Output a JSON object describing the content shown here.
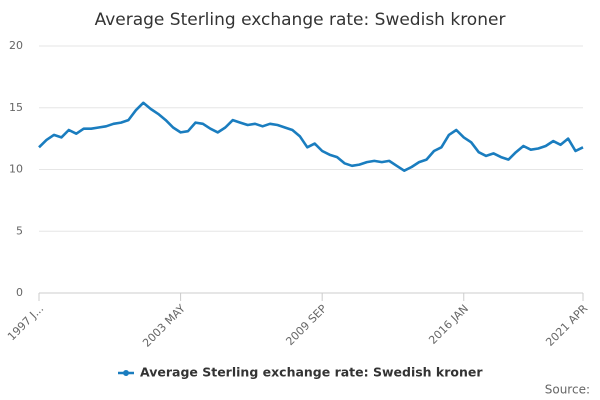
{
  "chart_data": {
    "type": "line",
    "title": "Average Sterling exchange rate: Swedish kroner",
    "categories": [
      "1997 J...",
      null,
      null,
      null,
      null,
      null,
      null,
      null,
      null,
      null,
      null,
      null,
      null,
      null,
      null,
      null,
      null,
      null,
      null,
      "2003 MAY",
      null,
      null,
      null,
      null,
      null,
      null,
      null,
      null,
      null,
      null,
      null,
      null,
      null,
      null,
      null,
      null,
      null,
      null,
      "2009 SEP",
      null,
      null,
      null,
      null,
      null,
      null,
      null,
      null,
      null,
      null,
      null,
      null,
      null,
      null,
      null,
      null,
      null,
      null,
      "2016 JAN",
      null,
      null,
      null,
      null,
      null,
      null,
      null,
      null,
      null,
      null,
      null,
      null,
      null,
      null,
      null,
      "2021 APR"
    ],
    "series": [
      {
        "name": "Average Sterling exchange rate: Swedish kroner",
        "color": "#1a7dbf",
        "values": [
          11.8,
          12.4,
          12.8,
          12.6,
          13.2,
          12.9,
          13.3,
          13.3,
          13.4,
          13.5,
          13.7,
          13.8,
          14.0,
          14.8,
          15.4,
          14.9,
          14.5,
          14.0,
          13.4,
          13.0,
          13.1,
          13.8,
          13.7,
          13.3,
          13.0,
          13.4,
          14.0,
          13.8,
          13.6,
          13.7,
          13.5,
          13.7,
          13.6,
          13.4,
          13.2,
          12.7,
          11.8,
          12.1,
          11.5,
          11.2,
          11.0,
          10.5,
          10.3,
          10.4,
          10.6,
          10.7,
          10.6,
          10.7,
          10.3,
          9.9,
          10.2,
          10.6,
          10.8,
          11.5,
          11.8,
          12.8,
          13.2,
          12.6,
          12.2,
          11.4,
          11.1,
          11.3,
          11.0,
          10.8,
          11.4,
          11.9,
          11.6,
          11.7,
          11.9,
          12.3,
          12.0,
          12.5,
          11.5,
          11.8
        ]
      }
    ],
    "ylim": [
      0,
      20
    ],
    "yticks": [
      0,
      5,
      10,
      15,
      20
    ],
    "grid": true,
    "legend": "bottom",
    "source": "Source:"
  }
}
